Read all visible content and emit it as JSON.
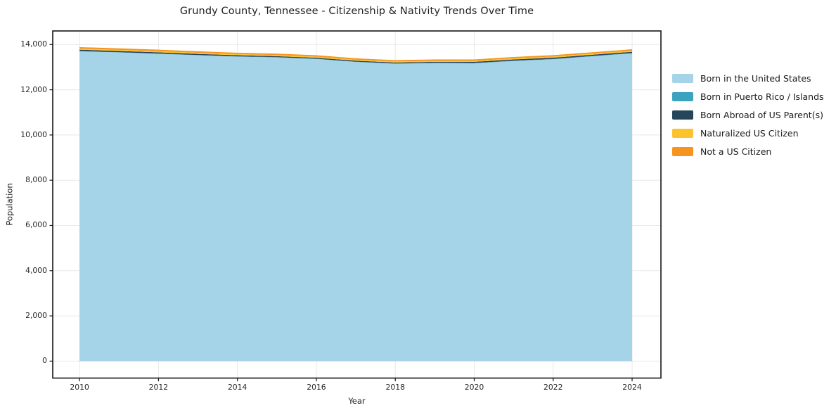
{
  "title": "Grundy County, Tennessee - Citizenship & Nativity Trends Over Time",
  "axes": {
    "x_label": "Year",
    "y_label": "Population"
  },
  "legend": {
    "items": [
      {
        "label": "Born in the United States",
        "color": "#a5d3e8"
      },
      {
        "label": "Born in Puerto Rico / Islands",
        "color": "#3ba3bf"
      },
      {
        "label": "Born Abroad of US Parent(s)",
        "color": "#25455b"
      },
      {
        "label": "Naturalized US Citizen",
        "color": "#fcc32d"
      },
      {
        "label": "Not a US Citizen",
        "color": "#f6941e"
      }
    ]
  },
  "chart_data": {
    "type": "area",
    "stacked": true,
    "title": "Grundy County, Tennessee - Citizenship & Nativity Trends Over Time",
    "xlabel": "Year",
    "ylabel": "Population",
    "x": [
      2010,
      2011,
      2012,
      2013,
      2014,
      2015,
      2016,
      2017,
      2018,
      2019,
      2020,
      2021,
      2022,
      2023,
      2024
    ],
    "series": [
      {
        "name": "Born in the United States",
        "color": "#a5d3e8",
        "values": [
          13700,
          13650,
          13590,
          13525,
          13465,
          13430,
          13360,
          13230,
          13150,
          13180,
          13170,
          13270,
          13350,
          13480,
          13610
        ]
      },
      {
        "name": "Born in Puerto Rico / Islands",
        "color": "#3ba3bf",
        "values": [
          10,
          10,
          10,
          10,
          10,
          10,
          10,
          10,
          10,
          10,
          15,
          15,
          15,
          15,
          15
        ]
      },
      {
        "name": "Born Abroad of US Parent(s)",
        "color": "#25455b",
        "values": [
          60,
          55,
          55,
          50,
          50,
          45,
          45,
          45,
          45,
          45,
          50,
          55,
          55,
          55,
          55
        ]
      },
      {
        "name": "Naturalized US Citizen",
        "color": "#fcc32d",
        "values": [
          50,
          50,
          50,
          50,
          50,
          50,
          50,
          45,
          45,
          45,
          45,
          50,
          50,
          50,
          50
        ]
      },
      {
        "name": "Not a US Citizen",
        "color": "#f6941e",
        "values": [
          65,
          65,
          65,
          65,
          60,
          60,
          60,
          60,
          60,
          60,
          60,
          60,
          60,
          60,
          60
        ]
      }
    ],
    "x_ticks": [
      2010,
      2012,
      2014,
      2016,
      2018,
      2020,
      2022,
      2024
    ],
    "y_ticks": [
      0,
      2000,
      4000,
      6000,
      8000,
      10000,
      12000,
      14000
    ],
    "y_tick_labels": [
      "0",
      "2,000",
      "4,000",
      "6,000",
      "8,000",
      "10,000",
      "12,000",
      "14,000"
    ],
    "xlim": [
      2009.32,
      2024.73
    ],
    "ylim": [
      -750,
      14600
    ],
    "grid": true,
    "legend_position": "right",
    "colors": {
      "spine": "#151515",
      "grid": "#e8e8e8",
      "background": "#ffffff"
    }
  }
}
